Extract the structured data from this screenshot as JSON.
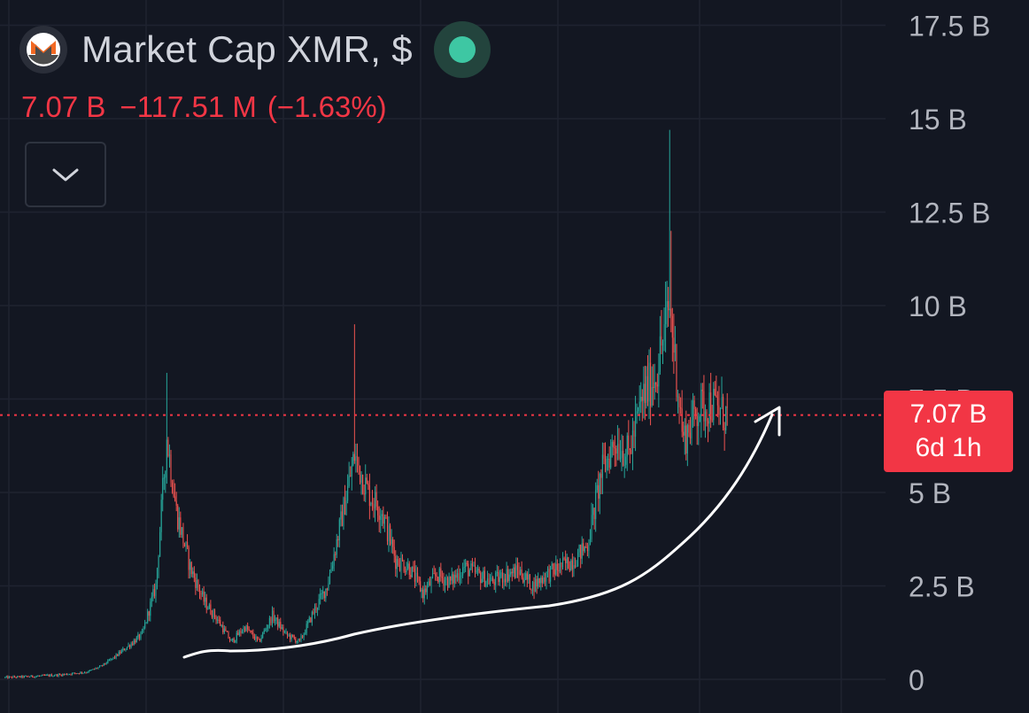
{
  "header": {
    "symbol_title": "Market Cap XMR, $",
    "logo_icon": "monero-logo-icon",
    "status_icon": "market-open-dot-icon",
    "last_value": "7.07 B",
    "change_abs": "−117.51 M",
    "change_pct": "(−1.63%)",
    "toggle_icon": "chevron-down-icon"
  },
  "price_label": {
    "value": "7.07 B",
    "countdown": "6d 1h"
  },
  "colors": {
    "background": "#131722",
    "up": "#26a69a",
    "down": "#ef5350",
    "accent_red": "#f23645",
    "axis_text": "#b2b5be"
  },
  "chart_data": {
    "type": "candlestick",
    "title": "Market Cap XMR, $",
    "xlabel": "",
    "ylabel": "",
    "y_ticks": [
      "0",
      "2.5 B",
      "5 B",
      "7.5 B",
      "10 B",
      "12.5 B",
      "15 B",
      "17.5 B"
    ],
    "y_tick_values": [
      0,
      2.5,
      5,
      7.5,
      10,
      12.5,
      15,
      17.5
    ],
    "y_unit": "B USD",
    "ylim": [
      0,
      18
    ],
    "grid": true,
    "current_value": 7.07,
    "approx_trajectory": {
      "description_points_index": [
        0,
        20,
        40,
        60,
        70,
        80,
        90,
        100,
        110,
        118,
        125,
        135,
        145,
        155,
        165,
        175,
        185,
        195,
        205,
        215,
        225,
        235,
        245,
        255,
        265,
        275,
        285,
        295,
        305,
        315,
        325,
        335,
        345,
        355,
        365,
        375,
        385,
        395,
        405,
        415,
        425,
        435,
        445,
        455,
        465,
        475,
        485,
        495,
        505,
        515,
        525
      ],
      "close_B": [
        0.05,
        0.08,
        0.12,
        0.2,
        0.35,
        0.6,
        0.9,
        1.2,
        2.5,
        6.5,
        4.5,
        3.0,
        2.1,
        1.6,
        1.0,
        1.4,
        1.0,
        1.7,
        1.2,
        1.0,
        1.8,
        2.5,
        4.2,
        6.0,
        5.0,
        4.5,
        3.2,
        3.0,
        2.3,
        2.8,
        2.6,
        3.0,
        2.8,
        2.6,
        2.8,
        2.9,
        2.5,
        2.8,
        3.0,
        3.2,
        3.6,
        5.5,
        6.4,
        6.0,
        7.5,
        8.2,
        10.0,
        6.4,
        7.2,
        7.4,
        7.07
      ]
    },
    "annotation": "trend-arrow"
  }
}
